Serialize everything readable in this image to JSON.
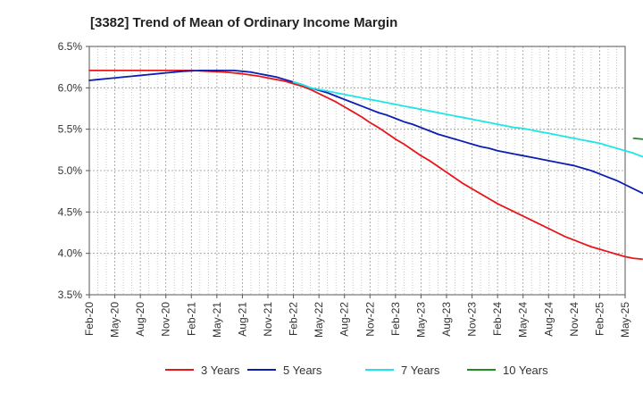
{
  "chart_data": {
    "type": "line",
    "title": "[3382]  Trend of Mean of Ordinary Income Margin",
    "xlabel": "",
    "ylabel": "",
    "x_ticks": [
      "Feb-20",
      "May-20",
      "Aug-20",
      "Nov-20",
      "Feb-21",
      "May-21",
      "Aug-21",
      "Nov-21",
      "Feb-22",
      "May-22",
      "Aug-22",
      "Nov-22",
      "Feb-23",
      "May-23",
      "Aug-23",
      "Nov-23",
      "Feb-24",
      "May-24",
      "Aug-24",
      "Nov-24",
      "Feb-25",
      "May-25"
    ],
    "y_ticks": [
      "3.5%",
      "4.0%",
      "4.5%",
      "5.0%",
      "5.5%",
      "6.0%",
      "6.5%"
    ],
    "ylim": [
      3.5,
      6.5
    ],
    "y_unit": "%",
    "grid": true,
    "legend_position": "bottom",
    "series": [
      {
        "name": "3 Years",
        "color": "#e8161b",
        "start_index": 0,
        "values": [
          6.21,
          6.21,
          6.21,
          6.21,
          6.21,
          6.21,
          6.21,
          6.21,
          6.21,
          6.21,
          6.21,
          6.21,
          6.21,
          6.205,
          6.2,
          6.195,
          6.19,
          6.18,
          6.17,
          6.155,
          6.14,
          6.12,
          6.1,
          6.08,
          6.05,
          6.02,
          5.98,
          5.93,
          5.88,
          5.83,
          5.77,
          5.71,
          5.65,
          5.58,
          5.52,
          5.45,
          5.38,
          5.32,
          5.25,
          5.18,
          5.12,
          5.05,
          4.98,
          4.91,
          4.84,
          4.78,
          4.72,
          4.66,
          4.6,
          4.55,
          4.5,
          4.45,
          4.4,
          4.35,
          4.3,
          4.25,
          4.2,
          4.16,
          4.12,
          4.08,
          4.05,
          4.02,
          3.99,
          3.96,
          3.94,
          3.93
        ]
      },
      {
        "name": "5 Years",
        "color": "#0a1eb4",
        "start_index": 0,
        "values": [
          6.09,
          6.1,
          6.11,
          6.12,
          6.13,
          6.14,
          6.15,
          6.16,
          6.17,
          6.18,
          6.19,
          6.2,
          6.205,
          6.21,
          6.21,
          6.21,
          6.21,
          6.21,
          6.2,
          6.19,
          6.17,
          6.15,
          6.13,
          6.1,
          6.07,
          6.04,
          6.0,
          5.97,
          5.94,
          5.9,
          5.86,
          5.82,
          5.78,
          5.74,
          5.7,
          5.67,
          5.63,
          5.59,
          5.56,
          5.52,
          5.48,
          5.44,
          5.41,
          5.38,
          5.35,
          5.32,
          5.29,
          5.27,
          5.24,
          5.22,
          5.2,
          5.18,
          5.16,
          5.14,
          5.12,
          5.1,
          5.08,
          5.06,
          5.03,
          5.0,
          4.96,
          4.92,
          4.88,
          4.83,
          4.78,
          4.73,
          4.67
        ]
      },
      {
        "name": "7 Years",
        "color": "#1ee6e6",
        "start_index": 24,
        "values": [
          6.07,
          6.04,
          6.0,
          5.98,
          5.96,
          5.94,
          5.92,
          5.9,
          5.88,
          5.86,
          5.84,
          5.82,
          5.8,
          5.78,
          5.76,
          5.74,
          5.72,
          5.7,
          5.68,
          5.66,
          5.64,
          5.62,
          5.6,
          5.58,
          5.56,
          5.54,
          5.52,
          5.51,
          5.49,
          5.47,
          5.45,
          5.43,
          5.41,
          5.39,
          5.37,
          5.35,
          5.33,
          5.3,
          5.27,
          5.24,
          5.21,
          5.17,
          5.13,
          5.09
        ]
      },
      {
        "name": "10 Years",
        "color": "#228b22",
        "start_index": 64,
        "values": [
          5.39,
          5.38,
          5.37
        ]
      }
    ]
  }
}
